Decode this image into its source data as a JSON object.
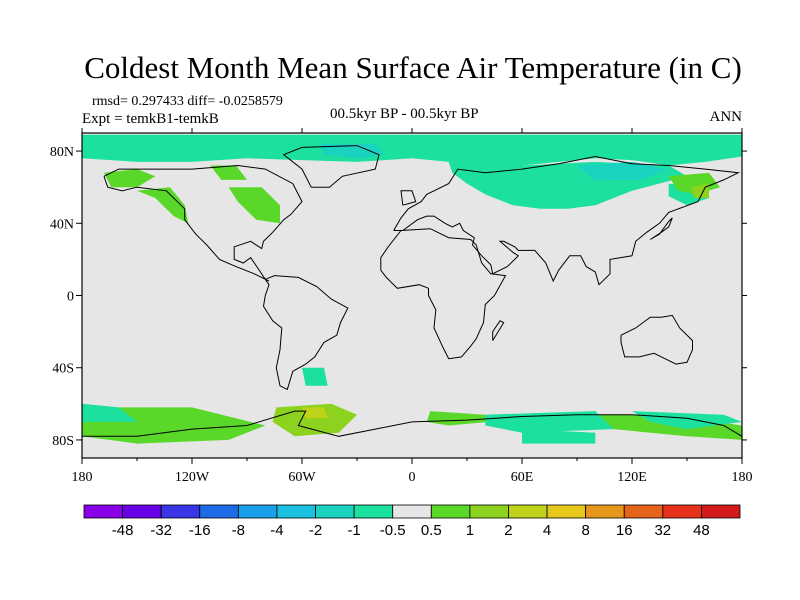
{
  "chart_data": {
    "type": "heatmap",
    "title": "Coldest Month Mean Surface Air Temperature (in C)",
    "stats_text": "rmsd= 0.297433 diff= -0.0258579",
    "experiment_text": "Expt = temkB1-temkB",
    "period_text": "00.5kyr BP - 00.5kyr BP",
    "season_text": "ANN",
    "x_ticks": [
      "180",
      "120W",
      "60W",
      "0",
      "60E",
      "120E",
      "180"
    ],
    "x_tick_lons": [
      -180,
      -120,
      -60,
      0,
      60,
      120,
      180
    ],
    "y_ticks": [
      "80N",
      "40N",
      "0",
      "40S",
      "80S"
    ],
    "y_tick_lats": [
      80,
      40,
      0,
      -40,
      -80
    ],
    "xlim": [
      -180,
      180
    ],
    "ylim": [
      -90,
      90
    ],
    "colorbar": {
      "labels": [
        "-48",
        "-32",
        "-16",
        "-8",
        "-4",
        "-2",
        "-1",
        "-0.5",
        "0.5",
        "1",
        "2",
        "4",
        "8",
        "16",
        "32",
        "48"
      ],
      "colors": [
        "#8a00e6",
        "#6a00e6",
        "#3a35e6",
        "#1c6ce8",
        "#1aa0ea",
        "#19c0e0",
        "#1ad2c0",
        "#1ce0a0",
        "#e6e6e6",
        "#5ad82a",
        "#8cd21e",
        "#bed21a",
        "#e6c81a",
        "#e6961a",
        "#e6641a",
        "#e6321a",
        "#d21a1a"
      ]
    },
    "regions": [
      {
        "name": "arctic-band",
        "level": "-0.5",
        "points": [
          [
            -180,
            89
          ],
          [
            180,
            89
          ],
          [
            180,
            77
          ],
          [
            160,
            74
          ],
          [
            140,
            72
          ],
          [
            120,
            75
          ],
          [
            100,
            76
          ],
          [
            80,
            74
          ],
          [
            60,
            72
          ],
          [
            40,
            72
          ],
          [
            20,
            74
          ],
          [
            0,
            76
          ],
          [
            -30,
            74
          ],
          [
            -60,
            75
          ],
          [
            -90,
            76
          ],
          [
            -120,
            74
          ],
          [
            -150,
            74
          ],
          [
            -180,
            76
          ]
        ]
      },
      {
        "name": "siberia",
        "level": "-0.5",
        "points": [
          [
            20,
            74
          ],
          [
            60,
            72
          ],
          [
            100,
            74
          ],
          [
            140,
            72
          ],
          [
            150,
            66
          ],
          [
            120,
            58
          ],
          [
            100,
            50
          ],
          [
            85,
            48
          ],
          [
            70,
            48
          ],
          [
            55,
            50
          ],
          [
            40,
            56
          ],
          [
            30,
            62
          ],
          [
            22,
            68
          ]
        ]
      },
      {
        "name": "west-npac",
        "level": "-0.5",
        "points": [
          [
            140,
            62
          ],
          [
            158,
            60
          ],
          [
            162,
            54
          ],
          [
            150,
            50
          ],
          [
            140,
            55
          ]
        ]
      },
      {
        "name": "greenland-cap",
        "level": "-1",
        "points": [
          [
            -50,
            84
          ],
          [
            -20,
            84
          ],
          [
            -15,
            78
          ],
          [
            -30,
            76
          ],
          [
            -48,
            78
          ]
        ]
      },
      {
        "name": "siberia-core",
        "level": "-1",
        "points": [
          [
            90,
            72
          ],
          [
            120,
            74
          ],
          [
            140,
            70
          ],
          [
            125,
            64
          ],
          [
            100,
            64
          ]
        ]
      },
      {
        "name": "alaska",
        "level": "0.5",
        "points": [
          [
            -168,
            68
          ],
          [
            -150,
            70
          ],
          [
            -140,
            66
          ],
          [
            -150,
            60
          ],
          [
            -164,
            60
          ]
        ]
      },
      {
        "name": "nw-america",
        "level": "0.5",
        "points": [
          [
            -150,
            58
          ],
          [
            -132,
            60
          ],
          [
            -124,
            50
          ],
          [
            -122,
            40
          ],
          [
            -130,
            44
          ],
          [
            -140,
            54
          ]
        ]
      },
      {
        "name": "eastern-canada",
        "level": "0.5",
        "points": [
          [
            -100,
            60
          ],
          [
            -82,
            60
          ],
          [
            -72,
            50
          ],
          [
            -72,
            40
          ],
          [
            -85,
            42
          ],
          [
            -95,
            52
          ]
        ]
      },
      {
        "name": "hudson",
        "level": "0.5",
        "points": [
          [
            -110,
            72
          ],
          [
            -96,
            72
          ],
          [
            -90,
            64
          ],
          [
            -104,
            64
          ]
        ]
      },
      {
        "name": "e-siberia",
        "level": "0.5",
        "points": [
          [
            140,
            66
          ],
          [
            162,
            68
          ],
          [
            168,
            60
          ],
          [
            155,
            56
          ],
          [
            145,
            58
          ]
        ]
      },
      {
        "name": "kamchatka",
        "level": "1",
        "points": [
          [
            152,
            60
          ],
          [
            162,
            62
          ],
          [
            162,
            54
          ],
          [
            154,
            54
          ]
        ]
      },
      {
        "name": "weddell",
        "level": "1",
        "points": [
          [
            -74,
            -62
          ],
          [
            -44,
            -60
          ],
          [
            -30,
            -66
          ],
          [
            -40,
            -76
          ],
          [
            -64,
            -78
          ],
          [
            -76,
            -70
          ]
        ]
      },
      {
        "name": "weddell-core",
        "level": "2",
        "points": [
          [
            -60,
            -62
          ],
          [
            -48,
            -62
          ],
          [
            -46,
            -68
          ],
          [
            -58,
            -68
          ]
        ]
      },
      {
        "name": "south-ocean-w",
        "level": "0.5",
        "points": [
          [
            -180,
            -62
          ],
          [
            -120,
            -62
          ],
          [
            -80,
            -72
          ],
          [
            -100,
            -80
          ],
          [
            -150,
            -82
          ],
          [
            -180,
            -78
          ]
        ]
      },
      {
        "name": "south-ocean-e",
        "level": "0.5",
        "points": [
          [
            10,
            -64
          ],
          [
            40,
            -66
          ],
          [
            42,
            -70
          ],
          [
            20,
            -72
          ],
          [
            8,
            -70
          ]
        ]
      },
      {
        "name": "south-ocean-far-e",
        "level": "0.5",
        "points": [
          [
            100,
            -66
          ],
          [
            140,
            -66
          ],
          [
            180,
            -72
          ],
          [
            180,
            -80
          ],
          [
            150,
            -78
          ],
          [
            110,
            -74
          ]
        ]
      },
      {
        "name": "ross",
        "level": "-0.5",
        "points": [
          [
            120,
            -64
          ],
          [
            170,
            -66
          ],
          [
            180,
            -70
          ],
          [
            150,
            -74
          ],
          [
            130,
            -70
          ]
        ]
      },
      {
        "name": "s-atlantic",
        "level": "-0.5",
        "points": [
          [
            -60,
            -40
          ],
          [
            -48,
            -40
          ],
          [
            -46,
            -50
          ],
          [
            -58,
            -50
          ]
        ]
      },
      {
        "name": "south-band-w",
        "level": "-0.5",
        "points": [
          [
            -180,
            -60
          ],
          [
            -160,
            -62
          ],
          [
            -150,
            -70
          ],
          [
            -180,
            -70
          ]
        ]
      },
      {
        "name": "south-band-e",
        "level": "-0.5",
        "points": [
          [
            40,
            -66
          ],
          [
            100,
            -64
          ],
          [
            110,
            -74
          ],
          [
            60,
            -76
          ],
          [
            40,
            -72
          ]
        ]
      },
      {
        "name": "s-indian",
        "level": "-0.5",
        "points": [
          [
            60,
            -74
          ],
          [
            100,
            -76
          ],
          [
            100,
            -82
          ],
          [
            60,
            -82
          ]
        ]
      }
    ]
  }
}
